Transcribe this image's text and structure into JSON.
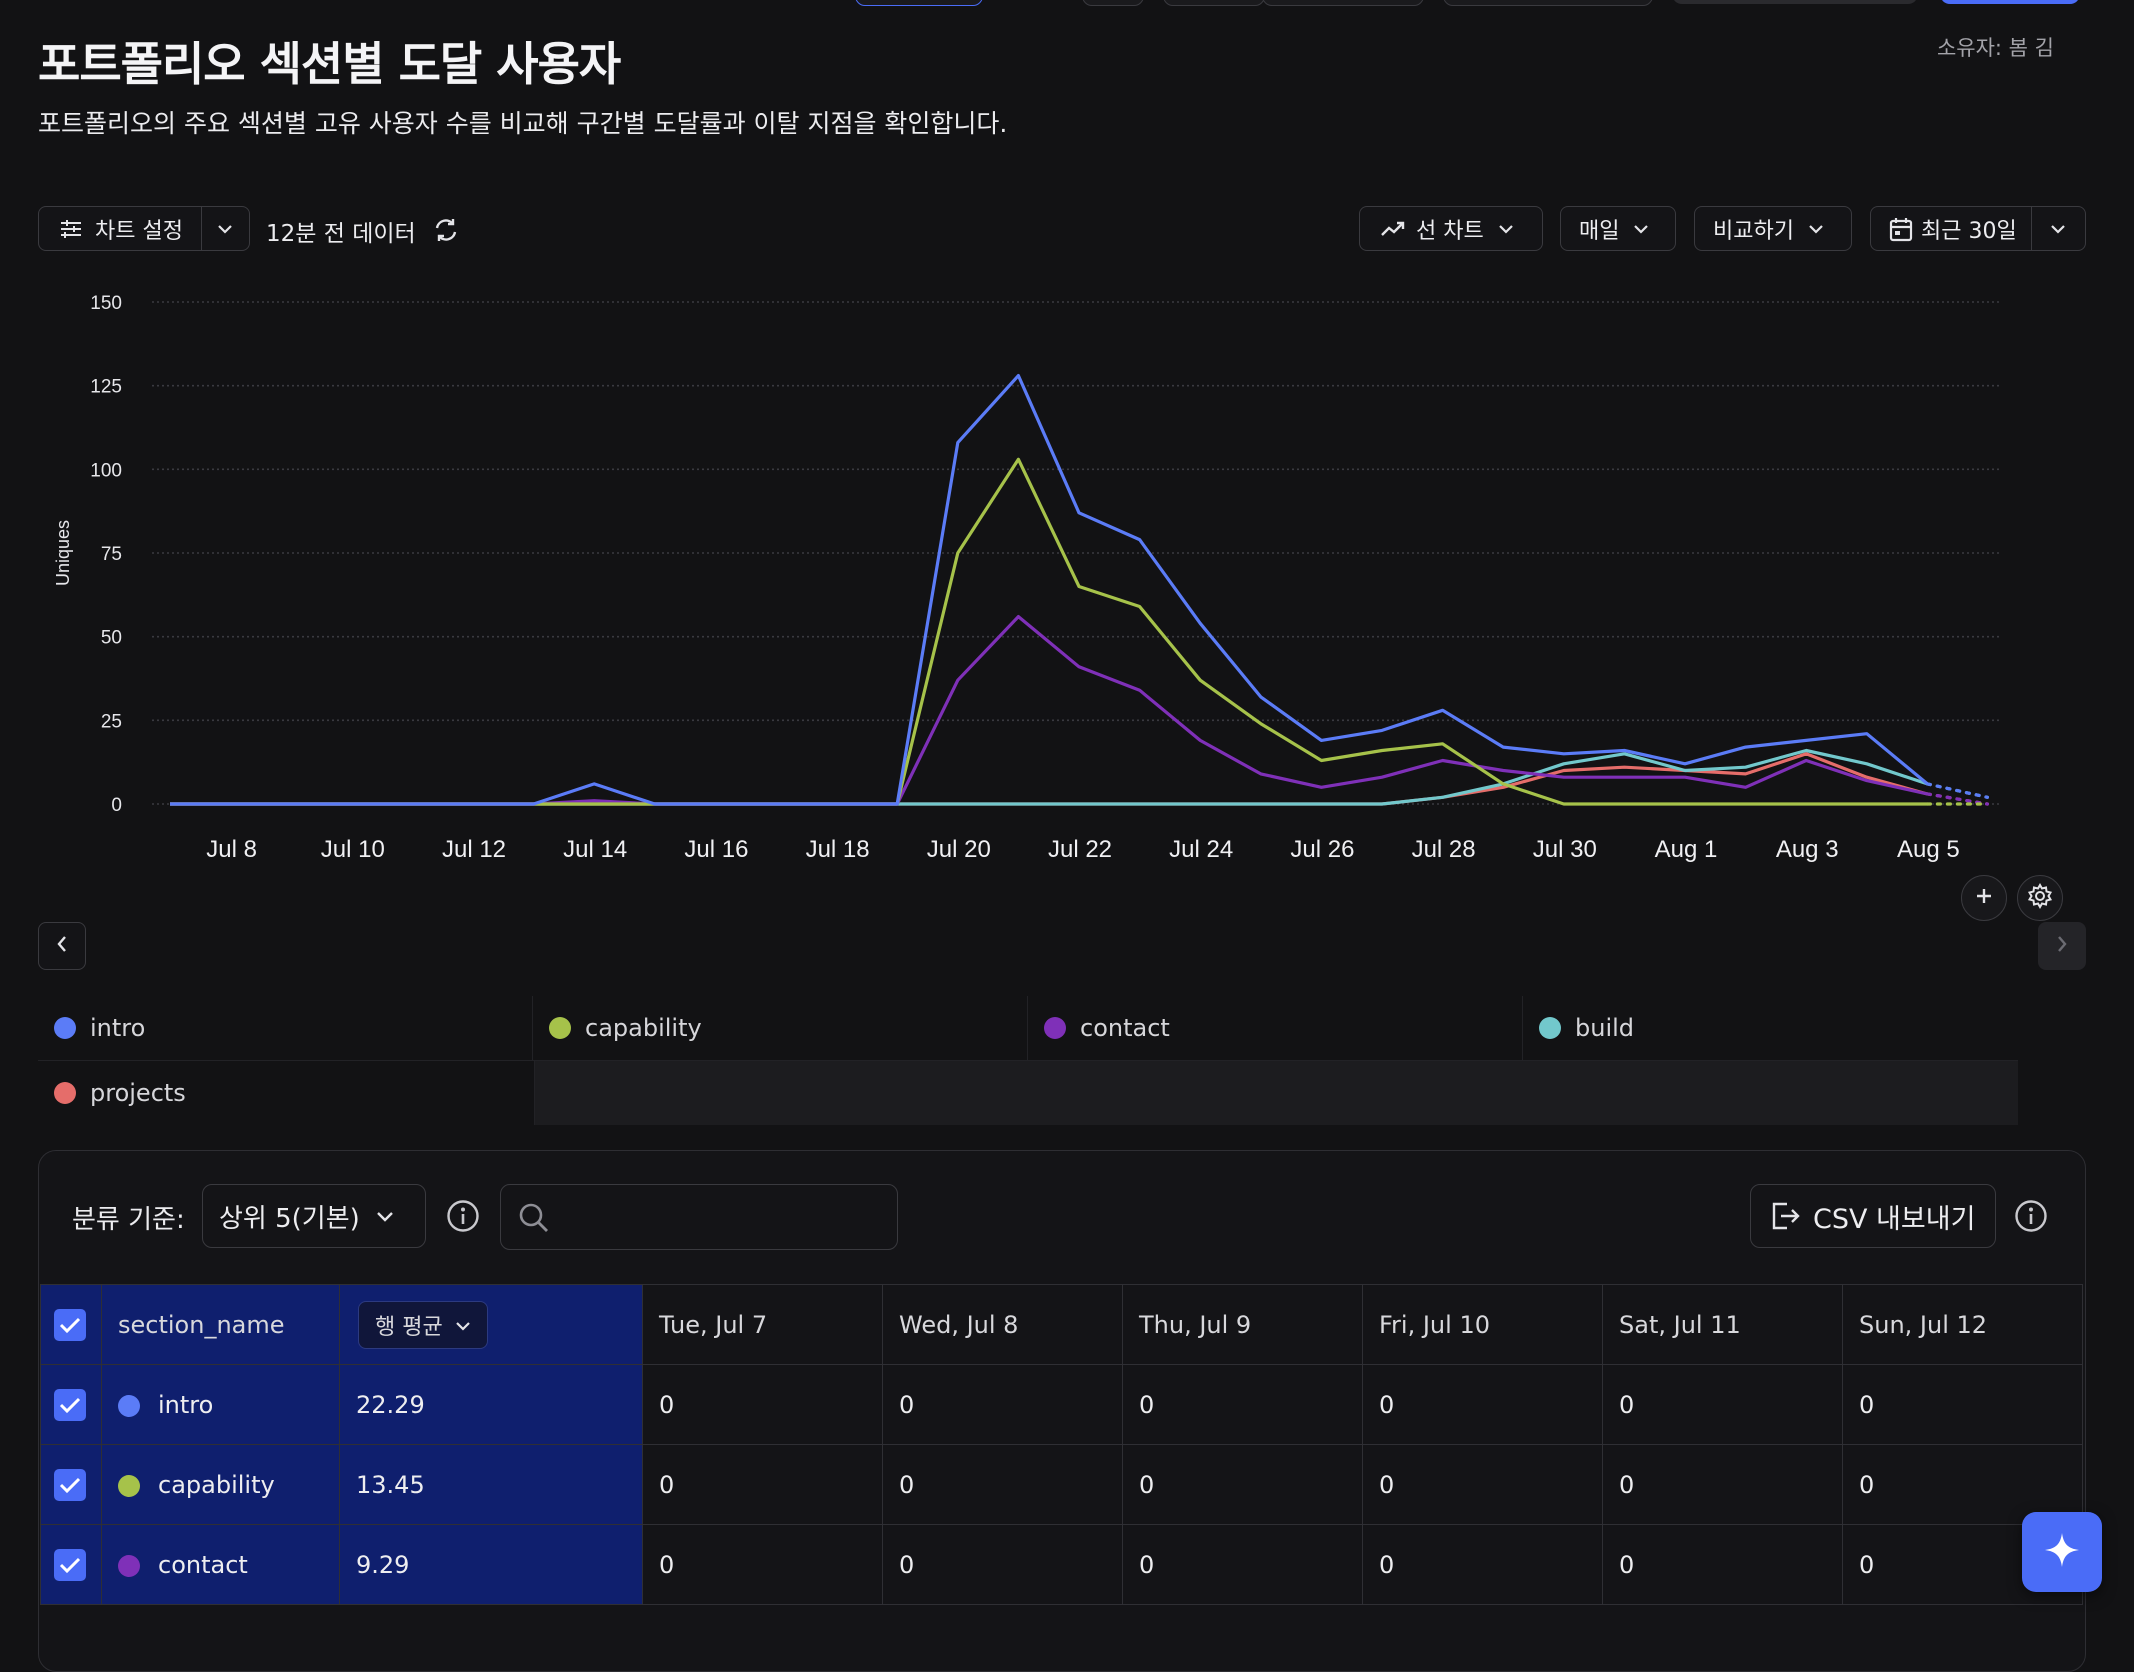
{
  "header": {
    "title": "포트폴리오 섹션별 도달 사용자",
    "subtitle": "포트폴리오의 주요 섹션별 고유 사용자 수를 비교해 구간별 도달률과 이탈 지점을 확인합니다.",
    "owner": "소유자: 봄 김"
  },
  "toolbar": {
    "chart_settings_label": "차트 설정",
    "data_freshness": "12분 전 데이터",
    "chart_type_label": "선 차트",
    "interval_label": "매일",
    "compare_label": "비교하기",
    "date_range_label": "최근 30일"
  },
  "chart_data": {
    "type": "line",
    "ylabel": "Uniques",
    "ylim": [
      0,
      150
    ],
    "yticks": [
      "0",
      "25",
      "50",
      "75",
      "100",
      "125",
      "150"
    ],
    "x": [
      "Jul 7",
      "Jul 8",
      "Jul 9",
      "Jul 10",
      "Jul 11",
      "Jul 12",
      "Jul 13",
      "Jul 14",
      "Jul 15",
      "Jul 16",
      "Jul 17",
      "Jul 18",
      "Jul 19",
      "Jul 20",
      "Jul 21",
      "Jul 22",
      "Jul 23",
      "Jul 24",
      "Jul 25",
      "Jul 26",
      "Jul 27",
      "Jul 28",
      "Jul 29",
      "Jul 30",
      "Jul 31",
      "Aug 1",
      "Aug 2",
      "Aug 3",
      "Aug 4",
      "Aug 5"
    ],
    "xtick_labels": [
      "Jul 8",
      "Jul 10",
      "Jul 12",
      "Jul 14",
      "Jul 16",
      "Jul 18",
      "Jul 20",
      "Jul 22",
      "Jul 24",
      "Jul 26",
      "Jul 28",
      "Jul 30",
      "Aug 1",
      "Aug 3",
      "Aug 5"
    ],
    "series": [
      {
        "name": "intro",
        "color": "#5b7cf7",
        "values": [
          0,
          0,
          0,
          0,
          0,
          0,
          0,
          6,
          0,
          0,
          0,
          0,
          0,
          108,
          128,
          87,
          79,
          54,
          32,
          19,
          22,
          28,
          17,
          15,
          16,
          12,
          17,
          19,
          21,
          6
        ]
      },
      {
        "name": "capability",
        "color": "#a6c24a",
        "values": [
          0,
          0,
          0,
          0,
          0,
          0,
          0,
          0,
          0,
          0,
          0,
          0,
          0,
          75,
          103,
          65,
          59,
          37,
          24,
          13,
          16,
          18,
          6,
          0,
          0,
          0,
          0,
          0,
          0,
          0
        ]
      },
      {
        "name": "contact",
        "color": "#7f30b8",
        "values": [
          0,
          0,
          0,
          0,
          0,
          0,
          0,
          1,
          0,
          0,
          0,
          0,
          0,
          37,
          56,
          41,
          34,
          19,
          9,
          5,
          8,
          13,
          10,
          8,
          8,
          8,
          5,
          13,
          7,
          3
        ]
      },
      {
        "name": "build",
        "color": "#72c8cc",
        "values": [
          0,
          0,
          0,
          0,
          0,
          0,
          0,
          0,
          0,
          0,
          0,
          0,
          0,
          0,
          0,
          0,
          0,
          0,
          0,
          0,
          0,
          2,
          6,
          12,
          15,
          10,
          11,
          16,
          12,
          6
        ]
      },
      {
        "name": "projects",
        "color": "#e56d6a",
        "values": [
          0,
          0,
          0,
          0,
          0,
          0,
          0,
          0,
          0,
          0,
          0,
          0,
          0,
          0,
          0,
          0,
          0,
          0,
          0,
          0,
          0,
          2,
          5,
          10,
          11,
          10,
          9,
          15,
          8,
          3
        ]
      }
    ]
  },
  "legend": {
    "items": [
      "intro",
      "capability",
      "contact",
      "build",
      "projects"
    ],
    "colors": [
      "#5b7cf7",
      "#a6c24a",
      "#7f30b8",
      "#72c8cc",
      "#e56d6a"
    ]
  },
  "breakdown": {
    "label": "분류 기준:",
    "selected": "상위 5(기본)",
    "search_placeholder": "",
    "export_label": "CSV 내보내기"
  },
  "table": {
    "col_name": "section_name",
    "col_avg": "행 평균",
    "date_columns": [
      "Tue, Jul 7",
      "Wed, Jul 8",
      "Thu, Jul 9",
      "Fri, Jul 10",
      "Sat, Jul 11",
      "Sun, Jul 12"
    ],
    "rows": [
      {
        "name": "intro",
        "color": "#5b7cf7",
        "avg": "22.29",
        "values": [
          "0",
          "0",
          "0",
          "0",
          "0",
          "0"
        ]
      },
      {
        "name": "capability",
        "color": "#a6c24a",
        "avg": "13.45",
        "values": [
          "0",
          "0",
          "0",
          "0",
          "0",
          "0"
        ]
      },
      {
        "name": "contact",
        "color": "#7f30b8",
        "avg": "9.29",
        "values": [
          "0",
          "0",
          "0",
          "0",
          "0",
          "0"
        ]
      }
    ]
  }
}
